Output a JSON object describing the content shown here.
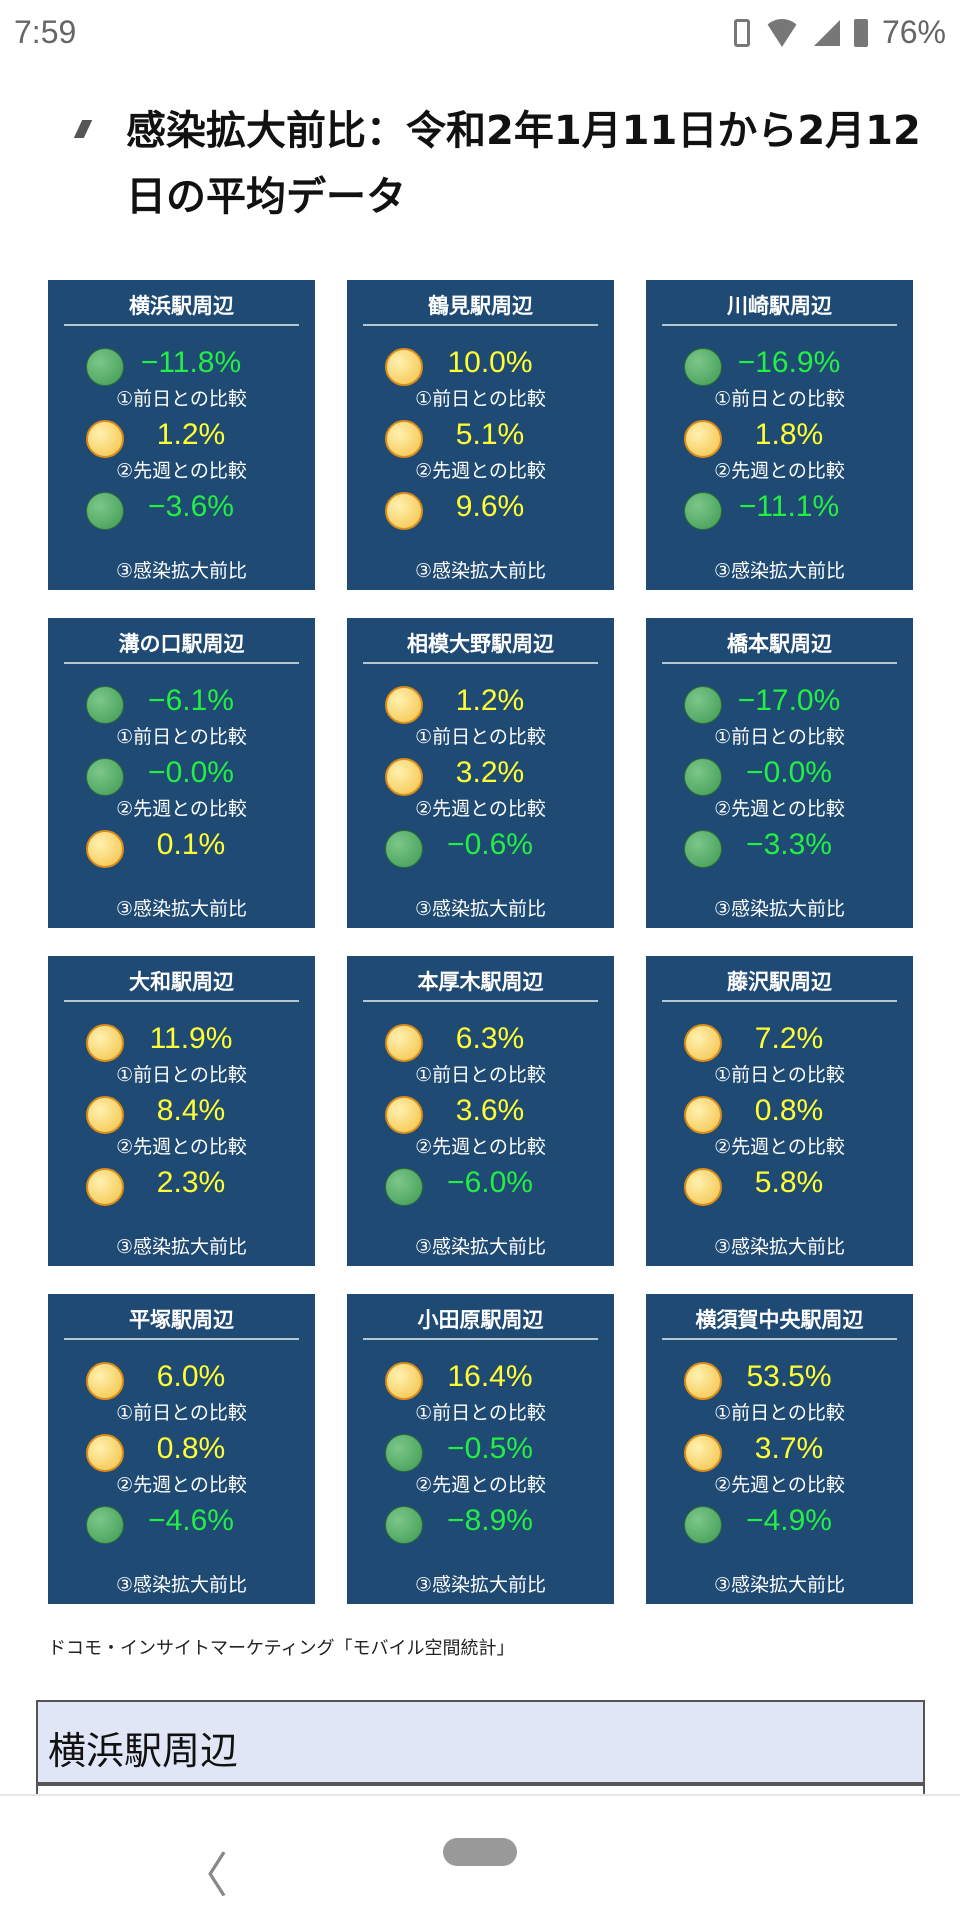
{
  "status_bar": {
    "time": "7:59",
    "battery": "76%",
    "icons": [
      "vibrate-icon",
      "wifi-icon",
      "signal-icon",
      "battery-icon"
    ]
  },
  "heading": "感染拡大前比：令和2年1月11日から2月12日の平均データ",
  "colors": {
    "card_bg": "#1f4a74",
    "decrease": "#22ee44",
    "increase": "#ffff33"
  },
  "metric_labels": [
    "①前日との比較",
    "②先週との比較",
    "③感染拡大前比"
  ],
  "stations": [
    {
      "name": "横浜駅周辺",
      "values": [
        {
          "v": "−11.8%",
          "c": "green"
        },
        {
          "v": "1.2%",
          "c": "yellow"
        },
        {
          "v": "−3.6%",
          "c": "green"
        }
      ]
    },
    {
      "name": "鶴見駅周辺",
      "values": [
        {
          "v": "10.0%",
          "c": "yellow"
        },
        {
          "v": "5.1%",
          "c": "yellow"
        },
        {
          "v": "9.6%",
          "c": "yellow"
        }
      ]
    },
    {
      "name": "川崎駅周辺",
      "values": [
        {
          "v": "−16.9%",
          "c": "green"
        },
        {
          "v": "1.8%",
          "c": "yellow"
        },
        {
          "v": "−11.1%",
          "c": "green"
        }
      ]
    },
    {
      "name": "溝の口駅周辺",
      "values": [
        {
          "v": "−6.1%",
          "c": "green"
        },
        {
          "v": "−0.0%",
          "c": "green"
        },
        {
          "v": "0.1%",
          "c": "yellow"
        }
      ]
    },
    {
      "name": "相模大野駅周辺",
      "values": [
        {
          "v": "1.2%",
          "c": "yellow"
        },
        {
          "v": "3.2%",
          "c": "yellow"
        },
        {
          "v": "−0.6%",
          "c": "green"
        }
      ]
    },
    {
      "name": "橋本駅周辺",
      "values": [
        {
          "v": "−17.0%",
          "c": "green"
        },
        {
          "v": "−0.0%",
          "c": "green"
        },
        {
          "v": "−3.3%",
          "c": "green"
        }
      ]
    },
    {
      "name": "大和駅周辺",
      "values": [
        {
          "v": "11.9%",
          "c": "yellow"
        },
        {
          "v": "8.4%",
          "c": "yellow"
        },
        {
          "v": "2.3%",
          "c": "yellow"
        }
      ]
    },
    {
      "name": "本厚木駅周辺",
      "values": [
        {
          "v": "6.3%",
          "c": "yellow"
        },
        {
          "v": "3.6%",
          "c": "yellow"
        },
        {
          "v": "−6.0%",
          "c": "green"
        }
      ]
    },
    {
      "name": "藤沢駅周辺",
      "values": [
        {
          "v": "7.2%",
          "c": "yellow"
        },
        {
          "v": "0.8%",
          "c": "yellow"
        },
        {
          "v": "5.8%",
          "c": "yellow"
        }
      ]
    },
    {
      "name": "平塚駅周辺",
      "values": [
        {
          "v": "6.0%",
          "c": "yellow"
        },
        {
          "v": "0.8%",
          "c": "yellow"
        },
        {
          "v": "−4.6%",
          "c": "green"
        }
      ]
    },
    {
      "name": "小田原駅周辺",
      "values": [
        {
          "v": "16.4%",
          "c": "yellow"
        },
        {
          "v": "−0.5%",
          "c": "green"
        },
        {
          "v": "−8.9%",
          "c": "green"
        }
      ]
    },
    {
      "name": "横須賀中央駅周辺",
      "values": [
        {
          "v": "53.5%",
          "c": "yellow"
        },
        {
          "v": "3.7%",
          "c": "yellow"
        },
        {
          "v": "−4.9%",
          "c": "green"
        }
      ]
    }
  ],
  "source": "ドコモ・インサイトマーケティング「モバイル空間統計」",
  "accordion_title": "横浜駅周辺"
}
